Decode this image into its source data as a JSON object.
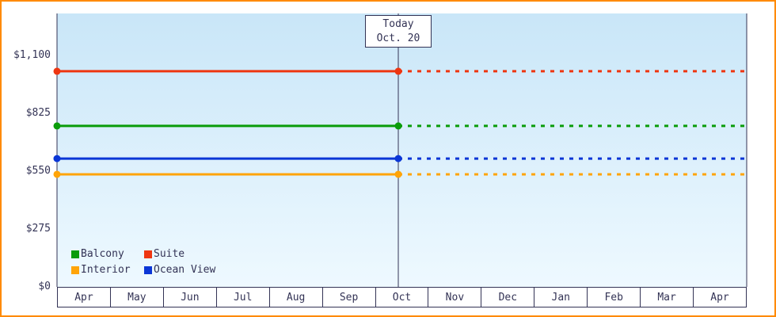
{
  "frame": {
    "border_color": "#ff8a00"
  },
  "colors": {
    "axis": "#333355",
    "text": "#333355",
    "plot_bg_top": "#c9e6f8",
    "plot_bg_bottom": "#eef9ff",
    "cell_bg": "#ffffff"
  },
  "chart_data": {
    "type": "line",
    "title": "",
    "description": "Cabin price history by category: flat price lines, solid before today, dotted projection after today",
    "x_categories": [
      "Apr",
      "May",
      "Jun",
      "Jul",
      "Aug",
      "Sep",
      "Oct",
      "Nov",
      "Dec",
      "Jan",
      "Feb",
      "Mar",
      "Apr"
    ],
    "y_axis": {
      "ticks": [
        {
          "label": "$1,100",
          "value": 1100
        },
        {
          "label": "$825",
          "value": 825
        },
        {
          "label": "$550",
          "value": 550
        },
        {
          "label": "$275",
          "value": 275
        },
        {
          "label": "$0",
          "value": 0
        }
      ],
      "range": [
        0,
        1300
      ]
    },
    "today": {
      "line1": "Today",
      "line2": "Oct. 20",
      "x_fraction": 0.495
    },
    "series": [
      {
        "name": "Suite",
        "color": "#ee3611",
        "value": 1025
      },
      {
        "name": "Balcony",
        "color": "#0a9c0a",
        "value": 765
      },
      {
        "name": "Ocean View",
        "color": "#0a36d6",
        "value": 610
      },
      {
        "name": "Interior",
        "color": "#ffa408",
        "value": 535
      }
    ],
    "legend": [
      {
        "label": "Balcony",
        "color": "#0a9c0a"
      },
      {
        "label": "Suite",
        "color": "#ee3611"
      },
      {
        "label": "Interior",
        "color": "#ffa408"
      },
      {
        "label": "Ocean View",
        "color": "#0a36d6"
      }
    ],
    "layout_hints": {
      "legend_position": "bottom-left inside plot",
      "grid": false,
      "pre_today_style": "solid",
      "post_today_style": "dotted",
      "markers": "circle at series start and at today line"
    }
  }
}
